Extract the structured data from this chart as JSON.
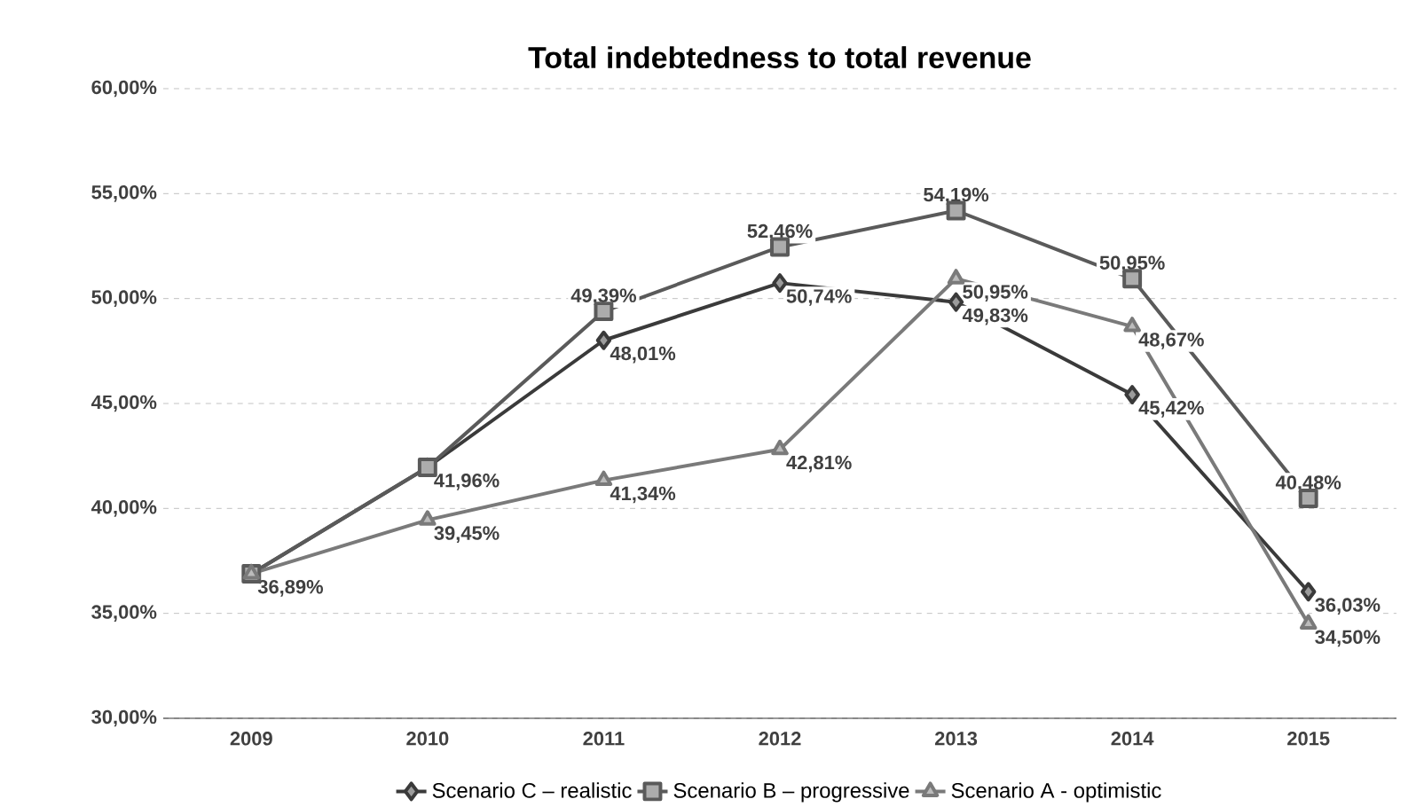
{
  "chart_data": {
    "type": "line",
    "title": "Total indebtedness to total revenue",
    "categories": [
      "2009",
      "2010",
      "2011",
      "2012",
      "2013",
      "2014",
      "2015"
    ],
    "series": [
      {
        "name": "Scenario C – realistic",
        "color": "#3a3a3a",
        "marker": "diamond",
        "values": [
          36.89,
          41.96,
          48.01,
          50.74,
          49.83,
          45.42,
          36.03
        ],
        "value_labels": [
          null,
          "41,96%",
          "48,01%",
          "50,74%",
          "49,83%",
          "45,42%",
          "36,03%"
        ]
      },
      {
        "name": "Scenario B – progressive",
        "color": "#5a5a5a",
        "marker": "square",
        "values": [
          36.89,
          41.96,
          49.39,
          52.46,
          54.19,
          50.95,
          40.48
        ],
        "value_labels": [
          null,
          null,
          "49,39%",
          "52,46%",
          "54,19%",
          "50,95%",
          "40,48%"
        ]
      },
      {
        "name": "Scenario A - optimistic",
        "color": "#7a7a7a",
        "marker": "triangle",
        "values": [
          36.89,
          39.45,
          41.34,
          42.81,
          50.95,
          48.67,
          34.5
        ],
        "value_labels": [
          "36,89%",
          "39,45%",
          "41,34%",
          "42,81%",
          "50,95%",
          "48,67%",
          "34,50%"
        ]
      }
    ],
    "ylim": [
      30,
      60
    ],
    "yticks": [
      {
        "value": 30,
        "label": "30,00%"
      },
      {
        "value": 35,
        "label": "35,00%"
      },
      {
        "value": 40,
        "label": "40,00%"
      },
      {
        "value": 45,
        "label": "45,00%"
      },
      {
        "value": 50,
        "label": "50,00%"
      },
      {
        "value": 55,
        "label": "55,00%"
      },
      {
        "value": 60,
        "label": "60,00%"
      }
    ],
    "grid": "y",
    "legend": "bottom",
    "line_style": "solid"
  }
}
